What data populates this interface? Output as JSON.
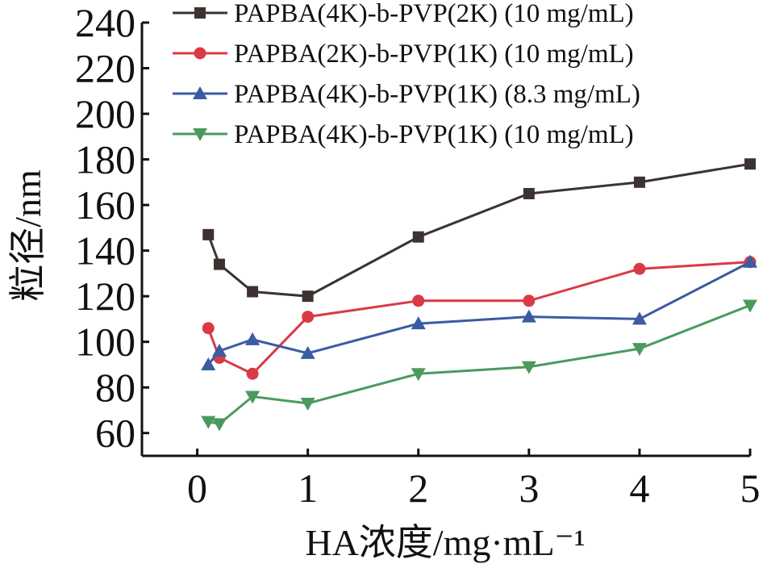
{
  "chart_data": {
    "type": "line",
    "title": "",
    "xlabel": "HA浓度/mg·mL⁻¹",
    "ylabel": "粒径/nm",
    "xlim": [
      -0.5,
      5
    ],
    "ylim": [
      50,
      240
    ],
    "x_ticks": [
      "0",
      "1",
      "2",
      "3",
      "4",
      "5"
    ],
    "y_ticks": [
      "60",
      "80",
      "100",
      "120",
      "140",
      "160",
      "180",
      "200",
      "220",
      "240"
    ],
    "grid": false,
    "legend_position": "top-right",
    "x": [
      0.1,
      0.2,
      0.5,
      1,
      2,
      3,
      4,
      5
    ],
    "series": [
      {
        "name": "PAPBA(4K)-b-PVP(2K) (10 mg/mL)",
        "color": "#3c3331",
        "marker": "square",
        "values": [
          147,
          134,
          122,
          120,
          146,
          165,
          170,
          178
        ]
      },
      {
        "name": "PAPBA(2K)-b-PVP(1K) (10 mg/mL)",
        "color": "#d93a45",
        "marker": "circle",
        "values": [
          106,
          93,
          86,
          111,
          118,
          118,
          132,
          135
        ]
      },
      {
        "name": "PAPBA(4K)-b-PVP(1K) (8.3 mg/mL)",
        "color": "#3b5ba3",
        "marker": "triangle-up",
        "values": [
          90,
          96,
          101,
          95,
          108,
          111,
          110,
          135
        ]
      },
      {
        "name": "PAPBA(4K)-b-PVP(1K) (10 mg/mL)",
        "color": "#4a9a5e",
        "marker": "triangle-down",
        "values": [
          65,
          64,
          76,
          73,
          86,
          89,
          97,
          116
        ]
      }
    ]
  }
}
